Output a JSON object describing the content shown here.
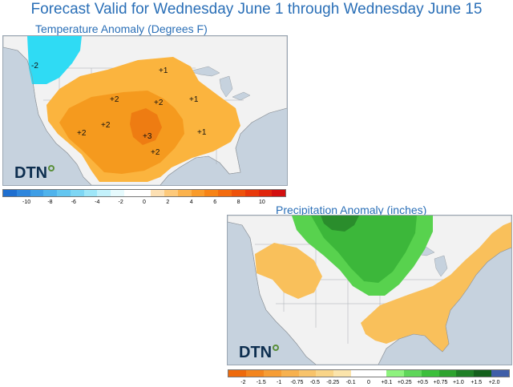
{
  "title": "Forecast Valid for Wednesday June 1 through Wednesday June 15",
  "branding": {
    "logo_text": "DTN"
  },
  "temperature_map": {
    "title": "Temperature Anomaly (Degrees F)",
    "labels": [
      "-2",
      "+1",
      "+2",
      "+2",
      "+1",
      "+2",
      "+2",
      "+3",
      "+1",
      "+2"
    ],
    "legend": {
      "ticks": [
        "-10",
        "-8",
        "-6",
        "-4",
        "-2",
        "0",
        "2",
        "4",
        "6",
        "8",
        "10"
      ],
      "colors": [
        "#1f6fd0",
        "#2e86dd",
        "#3e9ee6",
        "#4fb3ec",
        "#63c6f0",
        "#7dd6f4",
        "#9ee6f8",
        "#c3f1fb",
        "#e6fafd",
        "#ffffff",
        "#ffffff",
        "#fde0b3",
        "#fdc97a",
        "#fbb24c",
        "#f99b2a",
        "#f78315",
        "#f36b0e",
        "#ee520b",
        "#e8390a",
        "#e0250b",
        "#d31010"
      ]
    }
  },
  "precip_map": {
    "title": "Precipitation Anomaly (inches)",
    "legend": {
      "ticks": [
        "-2",
        "-1.5",
        "-1",
        "-0.75",
        "-0.5",
        "-0.25",
        "-0.1",
        "0",
        "+0.1",
        "+0.25",
        "+0.5",
        "+0.75",
        "+1.0",
        "+1.5",
        "+2.0"
      ],
      "colors": [
        "#ee6a0c",
        "#f3851e",
        "#f69d35",
        "#f7b14e",
        "#f8c36a",
        "#f9d487",
        "#fbe4ab",
        "#ffffff",
        "#ffffff",
        "#8ef27e",
        "#5fd65a",
        "#3cbf3c",
        "#2ea32f",
        "#1f7f26",
        "#14601c",
        "#3f5ea8"
      ]
    }
  },
  "colors": {
    "title_blue": "#2a6fb7",
    "land": "#f2f2f2",
    "water": "#c6d2de",
    "warm_light": "#fbb43e",
    "warm_mid": "#f59a1e",
    "warm_dark": "#ee7c12",
    "cold": "#2fdbf4",
    "dry": "#f9c05b",
    "wet_light": "#58d24e",
    "wet_mid": "#3cb73a",
    "wet_dark": "#2a8d2c"
  }
}
